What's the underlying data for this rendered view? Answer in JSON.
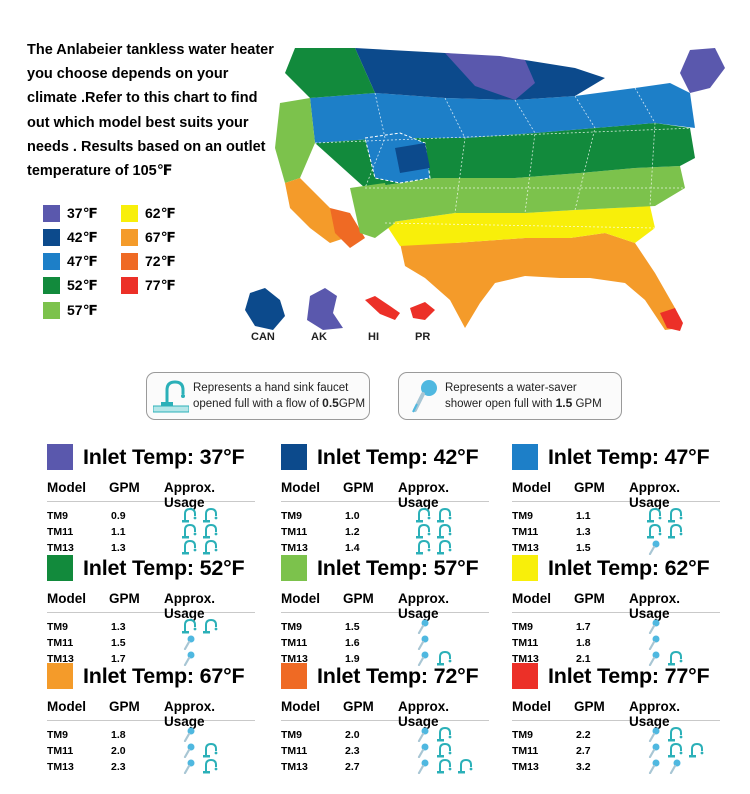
{
  "intro_text": "The Anlabeier tankless water heater you choose depends on your climate .Refer to this chart to find out which model best suits your needs . Results based on an outlet temperature of 105℉",
  "legend": [
    {
      "label": "37℉",
      "color": "#5a58ad"
    },
    {
      "label": "42℉",
      "color": "#0c4a8c"
    },
    {
      "label": "47℉",
      "color": "#1d7fc8"
    },
    {
      "label": "52℉",
      "color": "#128a3c"
    },
    {
      "label": "57℉",
      "color": "#7cc24c"
    },
    {
      "label": "62℉",
      "color": "#f8ef0a"
    },
    {
      "label": "67℉",
      "color": "#f49b2a"
    },
    {
      "label": "72℉",
      "color": "#ef6a24"
    },
    {
      "label": "77℉",
      "color": "#ec3028"
    }
  ],
  "map_labels": {
    "can": "CAN",
    "ak": "AK",
    "hi": "HI",
    "pr": "PR"
  },
  "info": {
    "faucet": {
      "line1": "Represents a hand sink faucet",
      "line2_pre": "opened full with a flow of ",
      "line2_val": "0.5",
      "line2_post": "GPM"
    },
    "shower": {
      "line1": "Represents a water-saver",
      "line2_pre": "shower open full with ",
      "line2_val": "1.5",
      "line2_post": " GPM"
    }
  },
  "headers": {
    "model": "Model",
    "gpm": "GPM",
    "usage": "Approx. Usage"
  },
  "panels": [
    {
      "title": "Inlet Temp: 37°F",
      "color": "#5a58ad",
      "rows": [
        {
          "model": "TM9",
          "gpm": "0.9",
          "icons": [
            "faucet",
            "faucet"
          ]
        },
        {
          "model": "TM11",
          "gpm": "1.1",
          "icons": [
            "faucet",
            "faucet"
          ]
        },
        {
          "model": "TM13",
          "gpm": "1.3",
          "icons": [
            "faucet",
            "faucet"
          ]
        }
      ]
    },
    {
      "title": "Inlet Temp: 42°F",
      "color": "#0c4a8c",
      "rows": [
        {
          "model": "TM9",
          "gpm": "1.0",
          "icons": [
            "faucet",
            "faucet"
          ]
        },
        {
          "model": "TM11",
          "gpm": "1.2",
          "icons": [
            "faucet",
            "faucet"
          ]
        },
        {
          "model": "TM13",
          "gpm": "1.4",
          "icons": [
            "faucet",
            "faucet"
          ]
        }
      ]
    },
    {
      "title": "Inlet Temp: 47°F",
      "color": "#1d7fc8",
      "rows": [
        {
          "model": "TM9",
          "gpm": "1.1",
          "icons": [
            "faucet",
            "faucet"
          ]
        },
        {
          "model": "TM11",
          "gpm": "1.3",
          "icons": [
            "faucet",
            "faucet"
          ]
        },
        {
          "model": "TM13",
          "gpm": "1.5",
          "icons": [
            "shower"
          ]
        }
      ]
    },
    {
      "title": "Inlet Temp: 52°F",
      "color": "#128a3c",
      "rows": [
        {
          "model": "TM9",
          "gpm": "1.3",
          "icons": [
            "faucet",
            "faucet"
          ]
        },
        {
          "model": "TM11",
          "gpm": "1.5",
          "icons": [
            "shower"
          ]
        },
        {
          "model": "TM13",
          "gpm": "1.7",
          "icons": [
            "shower"
          ]
        }
      ]
    },
    {
      "title": "Inlet Temp: 57°F",
      "color": "#7cc24c",
      "rows": [
        {
          "model": "TM9",
          "gpm": "1.5",
          "icons": [
            "shower"
          ]
        },
        {
          "model": "TM11",
          "gpm": "1.6",
          "icons": [
            "shower"
          ]
        },
        {
          "model": "TM13",
          "gpm": "1.9",
          "icons": [
            "shower",
            "faucet"
          ]
        }
      ]
    },
    {
      "title": "Inlet Temp: 62°F",
      "color": "#f8ef0a",
      "rows": [
        {
          "model": "TM9",
          "gpm": "1.7",
          "icons": [
            "shower"
          ]
        },
        {
          "model": "TM11",
          "gpm": "1.8",
          "icons": [
            "shower"
          ]
        },
        {
          "model": "TM13",
          "gpm": "2.1",
          "icons": [
            "shower",
            "faucet"
          ]
        }
      ]
    },
    {
      "title": "Inlet Temp: 67°F",
      "color": "#f49b2a",
      "rows": [
        {
          "model": "TM9",
          "gpm": "1.8",
          "icons": [
            "shower"
          ]
        },
        {
          "model": "TM11",
          "gpm": "2.0",
          "icons": [
            "shower",
            "faucet"
          ]
        },
        {
          "model": "TM13",
          "gpm": "2.3",
          "icons": [
            "shower",
            "faucet"
          ]
        }
      ]
    },
    {
      "title": "Inlet Temp: 72°F",
      "color": "#ef6a24",
      "rows": [
        {
          "model": "TM9",
          "gpm": "2.0",
          "icons": [
            "shower",
            "faucet"
          ]
        },
        {
          "model": "TM11",
          "gpm": "2.3",
          "icons": [
            "shower",
            "faucet"
          ]
        },
        {
          "model": "TM13",
          "gpm": "2.7",
          "icons": [
            "shower",
            "faucet",
            "faucet"
          ]
        }
      ]
    },
    {
      "title": "Inlet Temp: 77°F",
      "color": "#ec3028",
      "rows": [
        {
          "model": "TM9",
          "gpm": "2.2",
          "icons": [
            "shower",
            "faucet"
          ]
        },
        {
          "model": "TM11",
          "gpm": "2.7",
          "icons": [
            "shower",
            "faucet",
            "faucet"
          ]
        },
        {
          "model": "TM13",
          "gpm": "3.2",
          "icons": [
            "shower",
            "shower"
          ]
        }
      ]
    }
  ]
}
